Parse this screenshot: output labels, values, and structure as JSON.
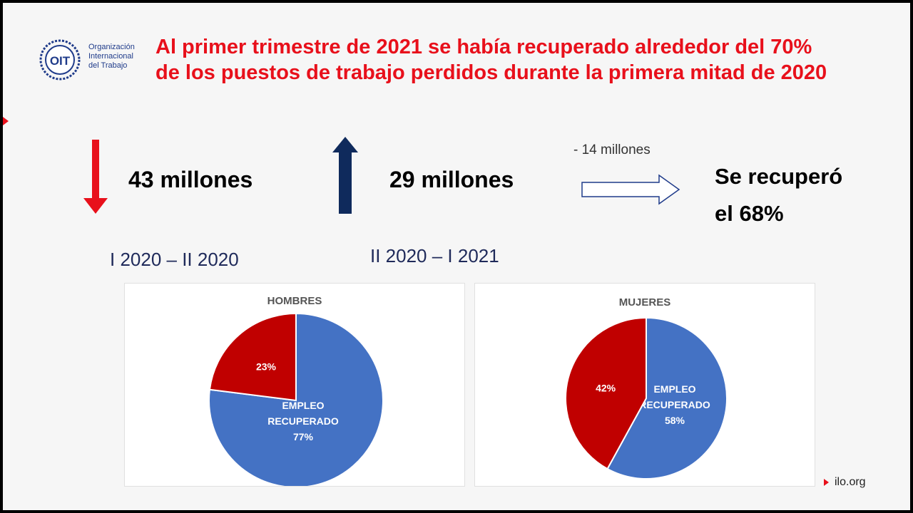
{
  "org": {
    "logo_text": "OIT",
    "name_lines": [
      "Organización",
      "Internacional",
      "del Trabajo"
    ]
  },
  "title": {
    "line1": "Al primer trimestre de 2021 se había recuperado alrededor del 70%",
    "line2": "de los puestos de trabajo perdidos durante la primera mitad de 2020"
  },
  "stats": {
    "loss": "43 millones",
    "loss_period": "I 2020 – II 2020",
    "gain": "29 millones",
    "gain_period": "II 2020 – I 2021",
    "net": "- 14 millones",
    "recovered_line1": "Se  recuperó",
    "recovered_line2": "el 68%"
  },
  "colors": {
    "red": "#e8101b",
    "navy": "#0f2a5c",
    "pie_blue": "#4472c4",
    "pie_red": "#c00000"
  },
  "chart_data": [
    {
      "type": "pie",
      "title": "HOMBRES",
      "slices": [
        {
          "label_line1": "EMPLEO",
          "label_line2": "RECUPERADO",
          "percent_label": "77%",
          "value": 77,
          "color": "#4472c4"
        },
        {
          "label_line1": "",
          "label_line2": "",
          "percent_label": "23%",
          "value": 23,
          "color": "#c00000"
        }
      ]
    },
    {
      "type": "pie",
      "title": "MUJERES",
      "slices": [
        {
          "label_line1": "EMPLEO",
          "label_line2": "RECUPERADO",
          "percent_label": "58%",
          "value": 58,
          "color": "#4472c4"
        },
        {
          "label_line1": "",
          "label_line2": "",
          "percent_label": "42%",
          "value": 42,
          "color": "#c00000"
        }
      ]
    }
  ],
  "footer": {
    "site": "ilo.org"
  }
}
